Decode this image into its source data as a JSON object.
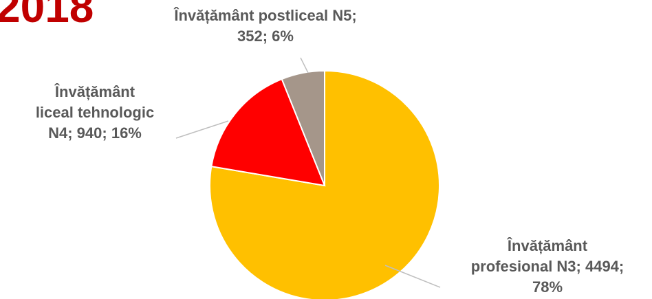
{
  "heading": "2018",
  "chart_data": {
    "type": "pie",
    "title": "",
    "start_angle_deg": 0,
    "slices": [
      {
        "name": "Învățământ profesional N3",
        "value": 4494,
        "percent": 78,
        "color": "#ffc000",
        "label_line1": "Învățământ",
        "label_line2": "profesional  N3; 4494;",
        "label_line3": "78%"
      },
      {
        "name": "Învățământ liceal tehnologic N4",
        "value": 940,
        "percent": 16,
        "color": "#ff0000",
        "label_line1": "Învățământ",
        "label_line2": "liceal tehnologic",
        "label_line3": "N4; 940; 16%"
      },
      {
        "name": "Învățământ postliceal N5",
        "value": 352,
        "percent": 6,
        "color": "#a5968a",
        "label_line1": "Învățământ postliceal N5;",
        "label_line2": "352; 6%"
      }
    ]
  }
}
